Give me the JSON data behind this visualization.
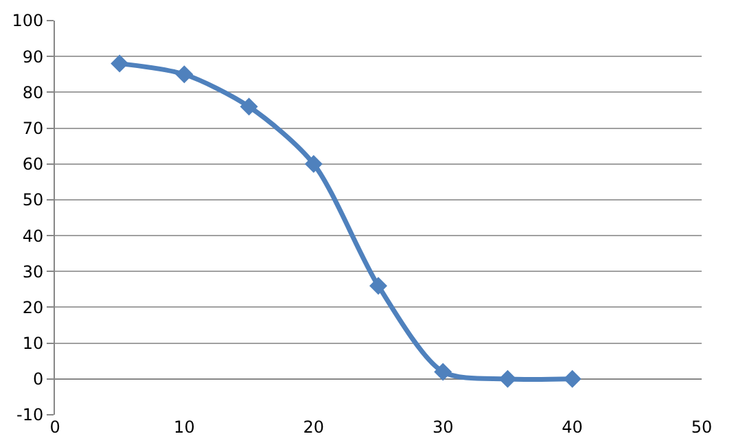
{
  "chart_data": {
    "type": "line",
    "x": [
      5,
      10,
      15,
      20,
      25,
      30,
      35,
      40
    ],
    "series": [
      {
        "color": "#4f81bd",
        "values": [
          88,
          85,
          76,
          60,
          26,
          2,
          0,
          0
        ]
      }
    ],
    "xlim": [
      0,
      50
    ],
    "xticks": [
      0,
      10,
      20,
      30,
      40,
      50
    ],
    "ylim": [
      -10,
      100
    ],
    "yticks": [
      -10,
      0,
      10,
      20,
      30,
      40,
      50,
      60,
      70,
      80,
      90,
      100
    ],
    "grid": "y",
    "marker": "diamond",
    "line_style": "solid"
  }
}
